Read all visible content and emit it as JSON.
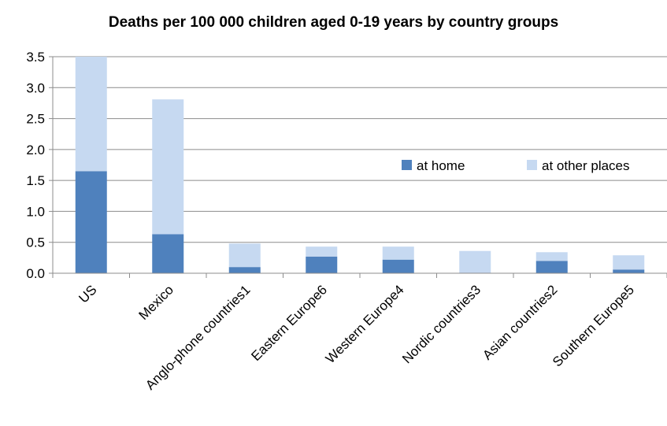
{
  "chart_data": {
    "type": "bar",
    "stacked": true,
    "title": "Deaths per 100 000 children aged 0-19 years by country groups",
    "xlabel": "",
    "ylabel": "",
    "ylim": [
      0,
      3.5
    ],
    "ytick_step": 0.5,
    "yticks": [
      "0.0",
      "0.5",
      "1.0",
      "1.5",
      "2.0",
      "2.5",
      "3.0",
      "3.5"
    ],
    "grid": true,
    "legend_position": "right",
    "categories": [
      "US",
      "Mexico",
      "Anglo-phone countries1",
      "Eastern Europe6",
      "Western Europe4",
      "Nordic countries3",
      "Asian countries2",
      "Southern Europe5"
    ],
    "series": [
      {
        "name": "at home",
        "color": "#4f81bd",
        "values": [
          1.65,
          0.63,
          0.1,
          0.27,
          0.22,
          0.0,
          0.2,
          0.06
        ]
      },
      {
        "name": "at other places",
        "color": "#c6d9f1",
        "values": [
          1.85,
          2.18,
          0.38,
          0.16,
          0.21,
          0.36,
          0.14,
          0.23
        ]
      }
    ]
  }
}
